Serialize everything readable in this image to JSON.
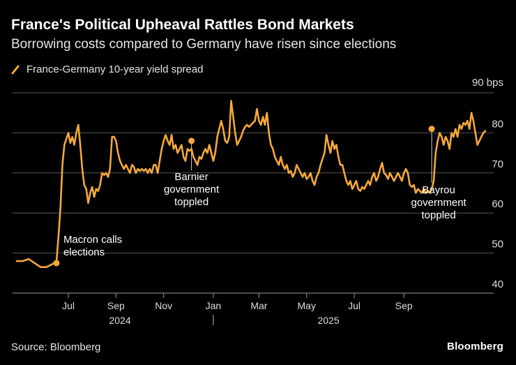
{
  "header": {
    "title": "France's Political Upheaval Rattles Bond Markets",
    "subtitle": "Borrowing costs compared to Germany have risen since elections"
  },
  "footer": {
    "source": "Source: Bloomberg",
    "brand": "Bloomberg"
  },
  "colors": {
    "series": "#f7a83a",
    "grid": "#555555",
    "background": "#000000"
  },
  "chart_data": {
    "type": "line",
    "title": "France's Political Upheaval Rattles Bond Markets",
    "subtitle": "Borrowing costs compared to Germany have risen since elections",
    "series": [
      {
        "name": "France-Germany 10-year yield spread",
        "points": [
          [
            0,
            48
          ],
          [
            3,
            48
          ],
          [
            6,
            48.5
          ],
          [
            9,
            47.5
          ],
          [
            12,
            46.5
          ],
          [
            15,
            46.5
          ],
          [
            17,
            47
          ],
          [
            19,
            47.5
          ],
          [
            20,
            47.5
          ],
          [
            21,
            54
          ],
          [
            22,
            61
          ],
          [
            23,
            72
          ],
          [
            24,
            77
          ],
          [
            25,
            78.5
          ],
          [
            26,
            80
          ],
          [
            27,
            77.5
          ],
          [
            28,
            79
          ],
          [
            29,
            77
          ],
          [
            30,
            80
          ],
          [
            31,
            82
          ],
          [
            32,
            77
          ],
          [
            33,
            71
          ],
          [
            34,
            67
          ],
          [
            35,
            66
          ],
          [
            36,
            62.5
          ],
          [
            37,
            65
          ],
          [
            38,
            66.5
          ],
          [
            39,
            64
          ],
          [
            40,
            66
          ],
          [
            41,
            65.5
          ],
          [
            42,
            67
          ],
          [
            43,
            70
          ],
          [
            44,
            69.5
          ],
          [
            45,
            70
          ],
          [
            46,
            69
          ],
          [
            47,
            71
          ],
          [
            48,
            79
          ],
          [
            49,
            79
          ],
          [
            50,
            78
          ],
          [
            51,
            75
          ],
          [
            52,
            73
          ],
          [
            53,
            72
          ],
          [
            54,
            71
          ],
          [
            55,
            72
          ],
          [
            56,
            71
          ],
          [
            57,
            70
          ],
          [
            58,
            72
          ],
          [
            59,
            71.5
          ],
          [
            60,
            70
          ],
          [
            61,
            71
          ],
          [
            62,
            70.5
          ],
          [
            63,
            71
          ],
          [
            64,
            70.5
          ],
          [
            65,
            71
          ],
          [
            66,
            70
          ],
          [
            67,
            71
          ],
          [
            68,
            70
          ],
          [
            69,
            72
          ],
          [
            70,
            72
          ],
          [
            71,
            70
          ],
          [
            72,
            73
          ],
          [
            73,
            76
          ],
          [
            74,
            78
          ],
          [
            75,
            79.5
          ],
          [
            76,
            78
          ],
          [
            77,
            77
          ],
          [
            78,
            79.5
          ],
          [
            79,
            76
          ],
          [
            80,
            77
          ],
          [
            81,
            75
          ],
          [
            82,
            76
          ],
          [
            83,
            77
          ],
          [
            84,
            74
          ],
          [
            85,
            73
          ],
          [
            86,
            76
          ],
          [
            87,
            75.5
          ],
          [
            88,
            76
          ],
          [
            89,
            74
          ],
          [
            90,
            73
          ],
          [
            91,
            72
          ],
          [
            92,
            74
          ],
          [
            93,
            73.5
          ],
          [
            94,
            75
          ],
          [
            95,
            76
          ],
          [
            96,
            75
          ],
          [
            97,
            77
          ],
          [
            98,
            75
          ],
          [
            99,
            73
          ],
          [
            100,
            75
          ],
          [
            101,
            79
          ],
          [
            102,
            81
          ],
          [
            103,
            83
          ],
          [
            104,
            81
          ],
          [
            105,
            78
          ],
          [
            106,
            77.5
          ],
          [
            107,
            79
          ],
          [
            108,
            88
          ],
          [
            109,
            84
          ],
          [
            110,
            80
          ],
          [
            111,
            77
          ],
          [
            112,
            78
          ],
          [
            113,
            79
          ],
          [
            114,
            80.5
          ],
          [
            115,
            81.5
          ],
          [
            116,
            82
          ],
          [
            117,
            81.5
          ],
          [
            118,
            82
          ],
          [
            119,
            82.5
          ],
          [
            120,
            83
          ],
          [
            121,
            86
          ],
          [
            122,
            83
          ],
          [
            123,
            82
          ],
          [
            124,
            84
          ],
          [
            125,
            82
          ],
          [
            126,
            85
          ],
          [
            127,
            80
          ],
          [
            128,
            77
          ],
          [
            129,
            76
          ],
          [
            130,
            74
          ],
          [
            131,
            73
          ],
          [
            132,
            72
          ],
          [
            133,
            74
          ],
          [
            134,
            72
          ],
          [
            135,
            71
          ],
          [
            136,
            72
          ],
          [
            137,
            70
          ],
          [
            138,
            70.5
          ],
          [
            139,
            69
          ],
          [
            140,
            70
          ],
          [
            141,
            72
          ],
          [
            142,
            71
          ],
          [
            143,
            70
          ],
          [
            144,
            69
          ],
          [
            145,
            70
          ],
          [
            146,
            68.5
          ],
          [
            147,
            69
          ],
          [
            148,
            70
          ],
          [
            149,
            68
          ],
          [
            150,
            67
          ],
          [
            151,
            69
          ],
          [
            152,
            70
          ],
          [
            153,
            72
          ],
          [
            154,
            73.5
          ],
          [
            155,
            75
          ],
          [
            156,
            79.5
          ],
          [
            157,
            77
          ],
          [
            158,
            75
          ],
          [
            159,
            78
          ],
          [
            160,
            76
          ],
          [
            161,
            77
          ],
          [
            162,
            74
          ],
          [
            163,
            72
          ],
          [
            164,
            72
          ],
          [
            165,
            70
          ],
          [
            166,
            68
          ],
          [
            167,
            67
          ],
          [
            168,
            68
          ],
          [
            169,
            66
          ],
          [
            170,
            67
          ],
          [
            171,
            68
          ],
          [
            172,
            66
          ],
          [
            173,
            65.5
          ],
          [
            174,
            66.5
          ],
          [
            175,
            66
          ],
          [
            176,
            67
          ],
          [
            177,
            68
          ],
          [
            178,
            67
          ],
          [
            179,
            69
          ],
          [
            180,
            70
          ],
          [
            181,
            68
          ],
          [
            182,
            69
          ],
          [
            183,
            71
          ],
          [
            184,
            72.5
          ],
          [
            185,
            70
          ],
          [
            186,
            69.5
          ],
          [
            187,
            68.5
          ],
          [
            188,
            70
          ],
          [
            189,
            69
          ],
          [
            190,
            68
          ],
          [
            191,
            69
          ],
          [
            192,
            70
          ],
          [
            193,
            69
          ],
          [
            194,
            68
          ],
          [
            195,
            70
          ],
          [
            196,
            71
          ],
          [
            197,
            70
          ],
          [
            198,
            67
          ],
          [
            199,
            66.5
          ],
          [
            200,
            67
          ],
          [
            201,
            65
          ],
          [
            202,
            66
          ],
          [
            203,
            65.5
          ],
          [
            204,
            65
          ],
          [
            205,
            66
          ],
          [
            206,
            65
          ],
          [
            207,
            65.5
          ],
          [
            208,
            65
          ],
          [
            209,
            66
          ],
          [
            210,
            68
          ],
          [
            211,
            75
          ],
          [
            212,
            78
          ],
          [
            213,
            80
          ],
          [
            214,
            79
          ],
          [
            215,
            77
          ],
          [
            216,
            79
          ],
          [
            217,
            78
          ],
          [
            218,
            76
          ],
          [
            219,
            80
          ],
          [
            220,
            79
          ],
          [
            221,
            81
          ],
          [
            222,
            79
          ],
          [
            223,
            82
          ],
          [
            224,
            81
          ],
          [
            225,
            82.5
          ],
          [
            226,
            82
          ],
          [
            227,
            83
          ],
          [
            228,
            81
          ],
          [
            229,
            85
          ],
          [
            230,
            83
          ],
          [
            231,
            80
          ],
          [
            232,
            77
          ],
          [
            233,
            78
          ],
          [
            234,
            79
          ],
          [
            235,
            80
          ],
          [
            236,
            80.5
          ]
        ]
      }
    ],
    "x_range": [
      0,
      236
    ],
    "month_ticks": [
      {
        "label": "Jul",
        "x": 26
      },
      {
        "label": "Sep",
        "x": 50
      },
      {
        "label": "Nov",
        "x": 74
      },
      {
        "label": "Jan",
        "x": 99
      },
      {
        "label": "Mar",
        "x": 122
      },
      {
        "label": "May",
        "x": 146
      },
      {
        "label": "Jul",
        "x": 170
      },
      {
        "label": "Sep",
        "x": 195
      }
    ],
    "year_labels": [
      {
        "label": "2024",
        "x": 52
      },
      {
        "label": "2025",
        "x": 157
      }
    ],
    "year_divider_x": 99,
    "ylim": [
      40,
      90
    ],
    "y_ticks": [
      {
        "value": 40,
        "label": "40"
      },
      {
        "value": 50,
        "label": "50"
      },
      {
        "value": 60,
        "label": "60"
      },
      {
        "value": 70,
        "label": "70"
      },
      {
        "value": 80,
        "label": "80"
      },
      {
        "value": 90,
        "label": "90 bps"
      }
    ],
    "annotations": [
      {
        "text": [
          "Macron calls",
          "elections"
        ],
        "x": 20,
        "y": 47.5
      },
      {
        "text": [
          "Barnier",
          "government",
          "toppled"
        ],
        "x": 88,
        "y": 78
      },
      {
        "text": [
          "Bayrou",
          "government",
          "toppled"
        ],
        "x": 209,
        "y": 81
      }
    ],
    "grid": true
  }
}
